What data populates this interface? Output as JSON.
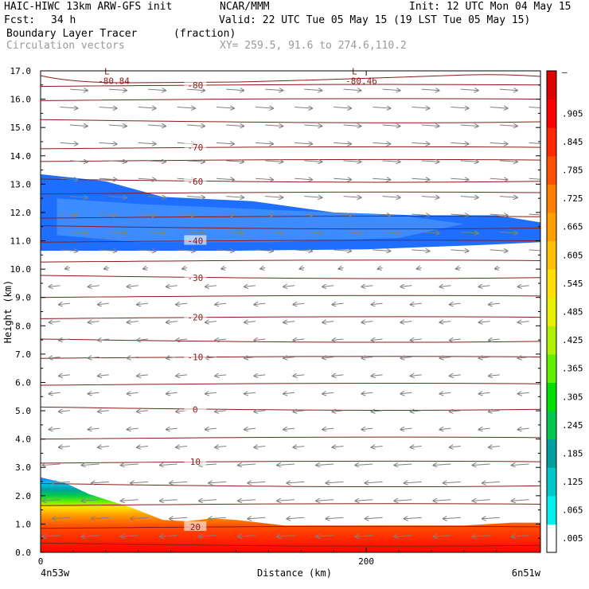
{
  "header": {
    "model": "HAIC-HIWC 13km ARW-GFS init",
    "org": "NCAR/MMM",
    "init": "Init: 12 UTC Mon 04 May 15",
    "fcst_label": "Fcst:",
    "fcst_value": "34 h",
    "valid": "Valid: 22 UTC Tue 05 May 15 (19 LST Tue 05 May 15)",
    "field_name": "Boundary Layer Tracer",
    "field_units": "(fraction)",
    "vector_label": "Circulation vectors",
    "xy_label": "XY= 259.5, 91.6 to 274.6,110.2"
  },
  "colors": {
    "contour": "#8b1a1a",
    "vector": "#808080",
    "frame": "#000000",
    "tracer_low": "#1e6fff",
    "tracer_high": "#ff0000"
  },
  "chart_data": {
    "type": "heatmap",
    "title": "Boundary Layer Tracer (fraction)",
    "xlabel": "Distance (km)",
    "ylabel": "Height (km)",
    "xlim": [
      0,
      307
    ],
    "ylim": [
      0,
      17
    ],
    "x_ticks": [
      0,
      200
    ],
    "x_tick_labels": [
      "0",
      "200"
    ],
    "x_end_labels": [
      "4n53w",
      "6n51w"
    ],
    "y_ticks": [
      0,
      1,
      2,
      3,
      4,
      5,
      6,
      7,
      8,
      9,
      10,
      11,
      12,
      13,
      14,
      15,
      16,
      17
    ],
    "y_tick_labels": [
      "0.0",
      "1.0",
      "2.0",
      "3.0",
      "4.0",
      "5.0",
      "6.0",
      "7.0",
      "8.0",
      "9.0",
      "10.0",
      "11.0",
      "12.0",
      "13.0",
      "14.0",
      "15.0",
      "16.0",
      "17.0"
    ],
    "colorbar": {
      "labels": [
        ".005",
        ".065",
        ".125",
        ".185",
        ".245",
        ".305",
        ".365",
        ".425",
        ".485",
        ".545",
        ".605",
        ".665",
        ".725",
        ".785",
        ".845",
        ".905"
      ],
      "top_label": "–",
      "colors": [
        "#ffffff",
        "#00f0f0",
        "#00c8c8",
        "#00a0a0",
        "#00c850",
        "#00e000",
        "#60f000",
        "#b0f000",
        "#e8f000",
        "#ffe000",
        "#ffc000",
        "#ffa000",
        "#ff8000",
        "#ff5000",
        "#ff2800",
        "#ff0000",
        "#e00000"
      ]
    },
    "temperature_contours": [
      {
        "label": "20",
        "x": 95,
        "z": 0.9
      },
      {
        "label": "10",
        "x": 95,
        "z": 3.2
      },
      {
        "label": "0",
        "x": 95,
        "z": 5.05
      },
      {
        "label": "-10",
        "x": 95,
        "z": 6.9
      },
      {
        "label": "-20",
        "x": 95,
        "z": 8.3
      },
      {
        "label": "-30",
        "x": 95,
        "z": 9.7
      },
      {
        "label": "-40",
        "x": 95,
        "z": 11.0
      },
      {
        "label": "-60",
        "x": 95,
        "z": 13.1
      },
      {
        "label": "-70",
        "x": 95,
        "z": 14.3
      },
      {
        "label": "-80",
        "x": 95,
        "z": 16.5
      }
    ],
    "contour_levels_z": [
      0.25,
      0.9,
      1.7,
      2.35,
      3.2,
      4.05,
      5.05,
      5.95,
      6.9,
      7.45,
      8.3,
      9.05,
      9.7,
      10.3,
      11.0,
      11.45,
      11.85,
      12.7,
      13.1,
      13.85,
      14.3,
      15.2,
      16.0,
      16.5
    ],
    "minima": [
      {
        "label": "L",
        "value": "-80.84",
        "x": 45,
        "z": 16.85
      },
      {
        "label": "L",
        "value": "-80.46",
        "x": 197,
        "z": 16.85
      }
    ],
    "tracer_bands": [
      {
        "name": "upper-layer",
        "max_fraction": 0.065,
        "z_bottom": 10.7,
        "z_top": 13.3
      },
      {
        "name": "boundary-layer",
        "max_fraction": 0.905,
        "z_bottom": 0.0,
        "z_top": 2.6
      }
    ]
  }
}
